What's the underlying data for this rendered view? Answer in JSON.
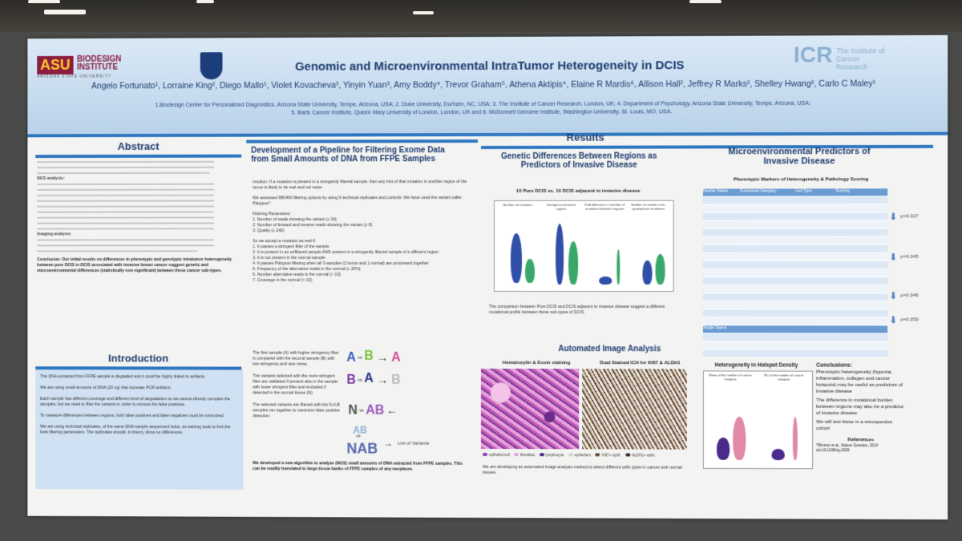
{
  "poster": {
    "title": "Genomic and Microenvironmental IntraTumor Heterogeneity in DCIS",
    "authors": "Angelo Fortunato¹, Lorraine King², Diego Mallo¹, Violet Kovacheva³, Yinyin Yuan³, Amy Boddy⁴, Trevor Graham⁵, Athena Aktipis⁴, Elaine R Mardis⁶, Allison Hall², Jeffrey R Marks², Shelley Hwang², Carlo C Maley¹",
    "affiliations_1": "1.Biodesign Center for Personalized Diagnostics, Arizona State University, Tempe, Arizona, USA; 2. Duke University, Durham, NC, USA; 3. The Institute of Cancer Research, London, UK; 4. Department of Psychology, Arizona State University, Tempe, Arizona, USA;",
    "affiliations_2": "5. Barts Cancer Institute, Queen Mary University of London, London, UK and 6. McDonnell Genome Institute, Washington University, St. Louis, MO, USA.",
    "logos": {
      "asu_mark": "ASU",
      "asu_name": "BIODESIGN INSTITUTE",
      "asu_sub": "ARIZONA STATE UNIVERSITY",
      "icr_mark": "ICR",
      "icr_name": "The Institute of Cancer Research"
    }
  },
  "abstract": {
    "heading": "Abstract",
    "ngs_label": "NGS analysis:",
    "imaging_label": "Imaging analysis:",
    "conclusion": "Conclusion: Our initial results on differences in phenotypic and genotypic intratumor heterogeneity between pure DCIS to DCIS associated with invasive breast cancer suggest genetic and microenvironmental differences (statistically non-significant) between these cancer sub-types."
  },
  "introduction": {
    "heading": "Introduction",
    "p1": "The DNA extracted from FFPE sample is degraded and it could be highly linked to artifacts.",
    "p2": "We are using small amounts of DNA (20 ng) that increase PCR artifacts.",
    "p3": "Each sample has different coverage and different level of degradation so we cannot directly compare the samples, but we need to filter the variants in order to remove the false positives.",
    "p4": "To measure differences between regions, both false positives and false negatives must be minimized.",
    "p5": "We are using technical replicates, of the same DNA sample sequenced twice, as training tools to find the best filtering parameters. The replicates should, in theory, show no differences."
  },
  "pipeline": {
    "heading": "Development of a Pipeline for Filtering Exome Data from Small Amounts of DNA from FFPE Samples",
    "intuition": "Intuition: If a mutation is present in a stringently filtered sample, then any hint of that mutation in another region of the tumor is likely to be real and not noise.",
    "assessed": "We assessed 680400 filtering options by using 9 technical replicates and controls. We have used the variant caller Platypus*.",
    "params_heading": "Filtering Parameters:",
    "params": [
      "1. Number of reads showing the variant (≥ 16)",
      "2. Number of forward and reverse reads showing the variant (≥ 8)",
      "3. Quality (≥ 240)"
    ],
    "accept_heading": "So we accept a mutation as real if:",
    "accept": [
      "1. It passes a stringent filter of the sample",
      "2. It is present in an unfiltered sample AND present in a stringently filtered sample of a different region",
      "3. It is not present in the normal sample",
      "4. It passes Platypus filtering when all 3 samples (2 tumor and 1 normal) are processed together",
      "5. Frequency of the alternative reads in the normal (≤ 20%)",
      "6. Number alternative reads in the normal (< 10)",
      "7. Coverage in the normal (> 10)"
    ],
    "scheme_p1": "The first sample (A) with higher stringency filter is compared with the second sample (B) with low stringency and vice versa.",
    "scheme_p2": "The variants selected with the more stringent filter are validated if present also in the sample with lower stringent filter and excluded if detected in the normal tissue (N).",
    "scheme_p3": "The selected variants are filtered with the N,A,B samples run together to maximize false positive detection.",
    "developed": "We developed a new algorithm to analyze (NGS) small amounts of DNA extracted from FFPE samples. This can be readily translated to large tissue banks of FFPE samples of any neoplasm.",
    "scheme_labels": [
      "A",
      "vs",
      "B",
      "A",
      "B",
      "vs",
      "A",
      "B",
      "N",
      "vs",
      "AB",
      "AB",
      "vs",
      "NAB"
    ],
    "list_label": "List of Variants"
  },
  "results": {
    "heading": "Results",
    "genetic_heading": "Genetic Differences Between Regions as Predictors of Invasive Disease",
    "genetic_subtitle": "10 Pure DCIS vs. 10 DCIS adjacent to invasive disease",
    "panel_titles": [
      "Number of mutations",
      "Divergence between regions",
      "Fold difference in number of mutations between regions",
      "Number of somatic non-synonymous mutations"
    ],
    "genetic_caption": "The comparison between Pure DCIS and DCIS adjacent to invasive disease suggest a different mutational profile between these sub-types of DCIS.",
    "image_heading": "Automated Image Analysis",
    "he_title": "Hematoxylin & Eosin staining",
    "ihc_title": "Dual Stained ICH for KI67 & ALDH1",
    "image_caption": "We are developing an automated image analysis method to detect different cells types in cancer and normal tissues.",
    "legend_he": [
      "epithelial cell",
      "fibroblast",
      "lymphocyte"
    ],
    "legend_ihc": [
      "epithelium",
      "KI67+ epith.",
      "ALDH1+ epith."
    ]
  },
  "micro": {
    "heading": "Microenvironmental Predictors of Invasive Disease",
    "table_title": "Phenotypic Markers of Heterogeneity & Pathology Scoring",
    "columns": [
      "Double Stains",
      "Functional Category",
      "Cell Type",
      "Scoring"
    ],
    "single_stains_label": "Single Stains",
    "pvals": [
      "p=0.027",
      "p=0.045",
      "p=0.046",
      "p=0.059"
    ],
    "hotspot_heading": "Heterogeneity in Hotspot Density",
    "hotspot_panels": [
      "Mean of the number of cancer hotspots",
      "SD of the number of cancer hotspots"
    ],
    "conclusions_heading": "Conclusions:",
    "conclusions": [
      "Phenotypic heterogeneity (hypoxia, inflammation, collagen and cancer hotspots) may be useful as predictors of invasive disease",
      "The difference in mutational burden between regions may also be a predictor of invasive disease",
      "We will test these in a retrospective cohort"
    ],
    "references_heading": "References",
    "reference": "*Rimmer et al., Nature Genetics, 2014 doi:10.1038/ng.3036"
  },
  "colors": {
    "header_blue": "#2f77c0",
    "title_navy": "#1f3d70",
    "violin_blue": "#2f4fa8",
    "violin_green": "#3aa86a",
    "violin_purple": "#4a2a8a",
    "violin_pink": "#e08aa8"
  }
}
